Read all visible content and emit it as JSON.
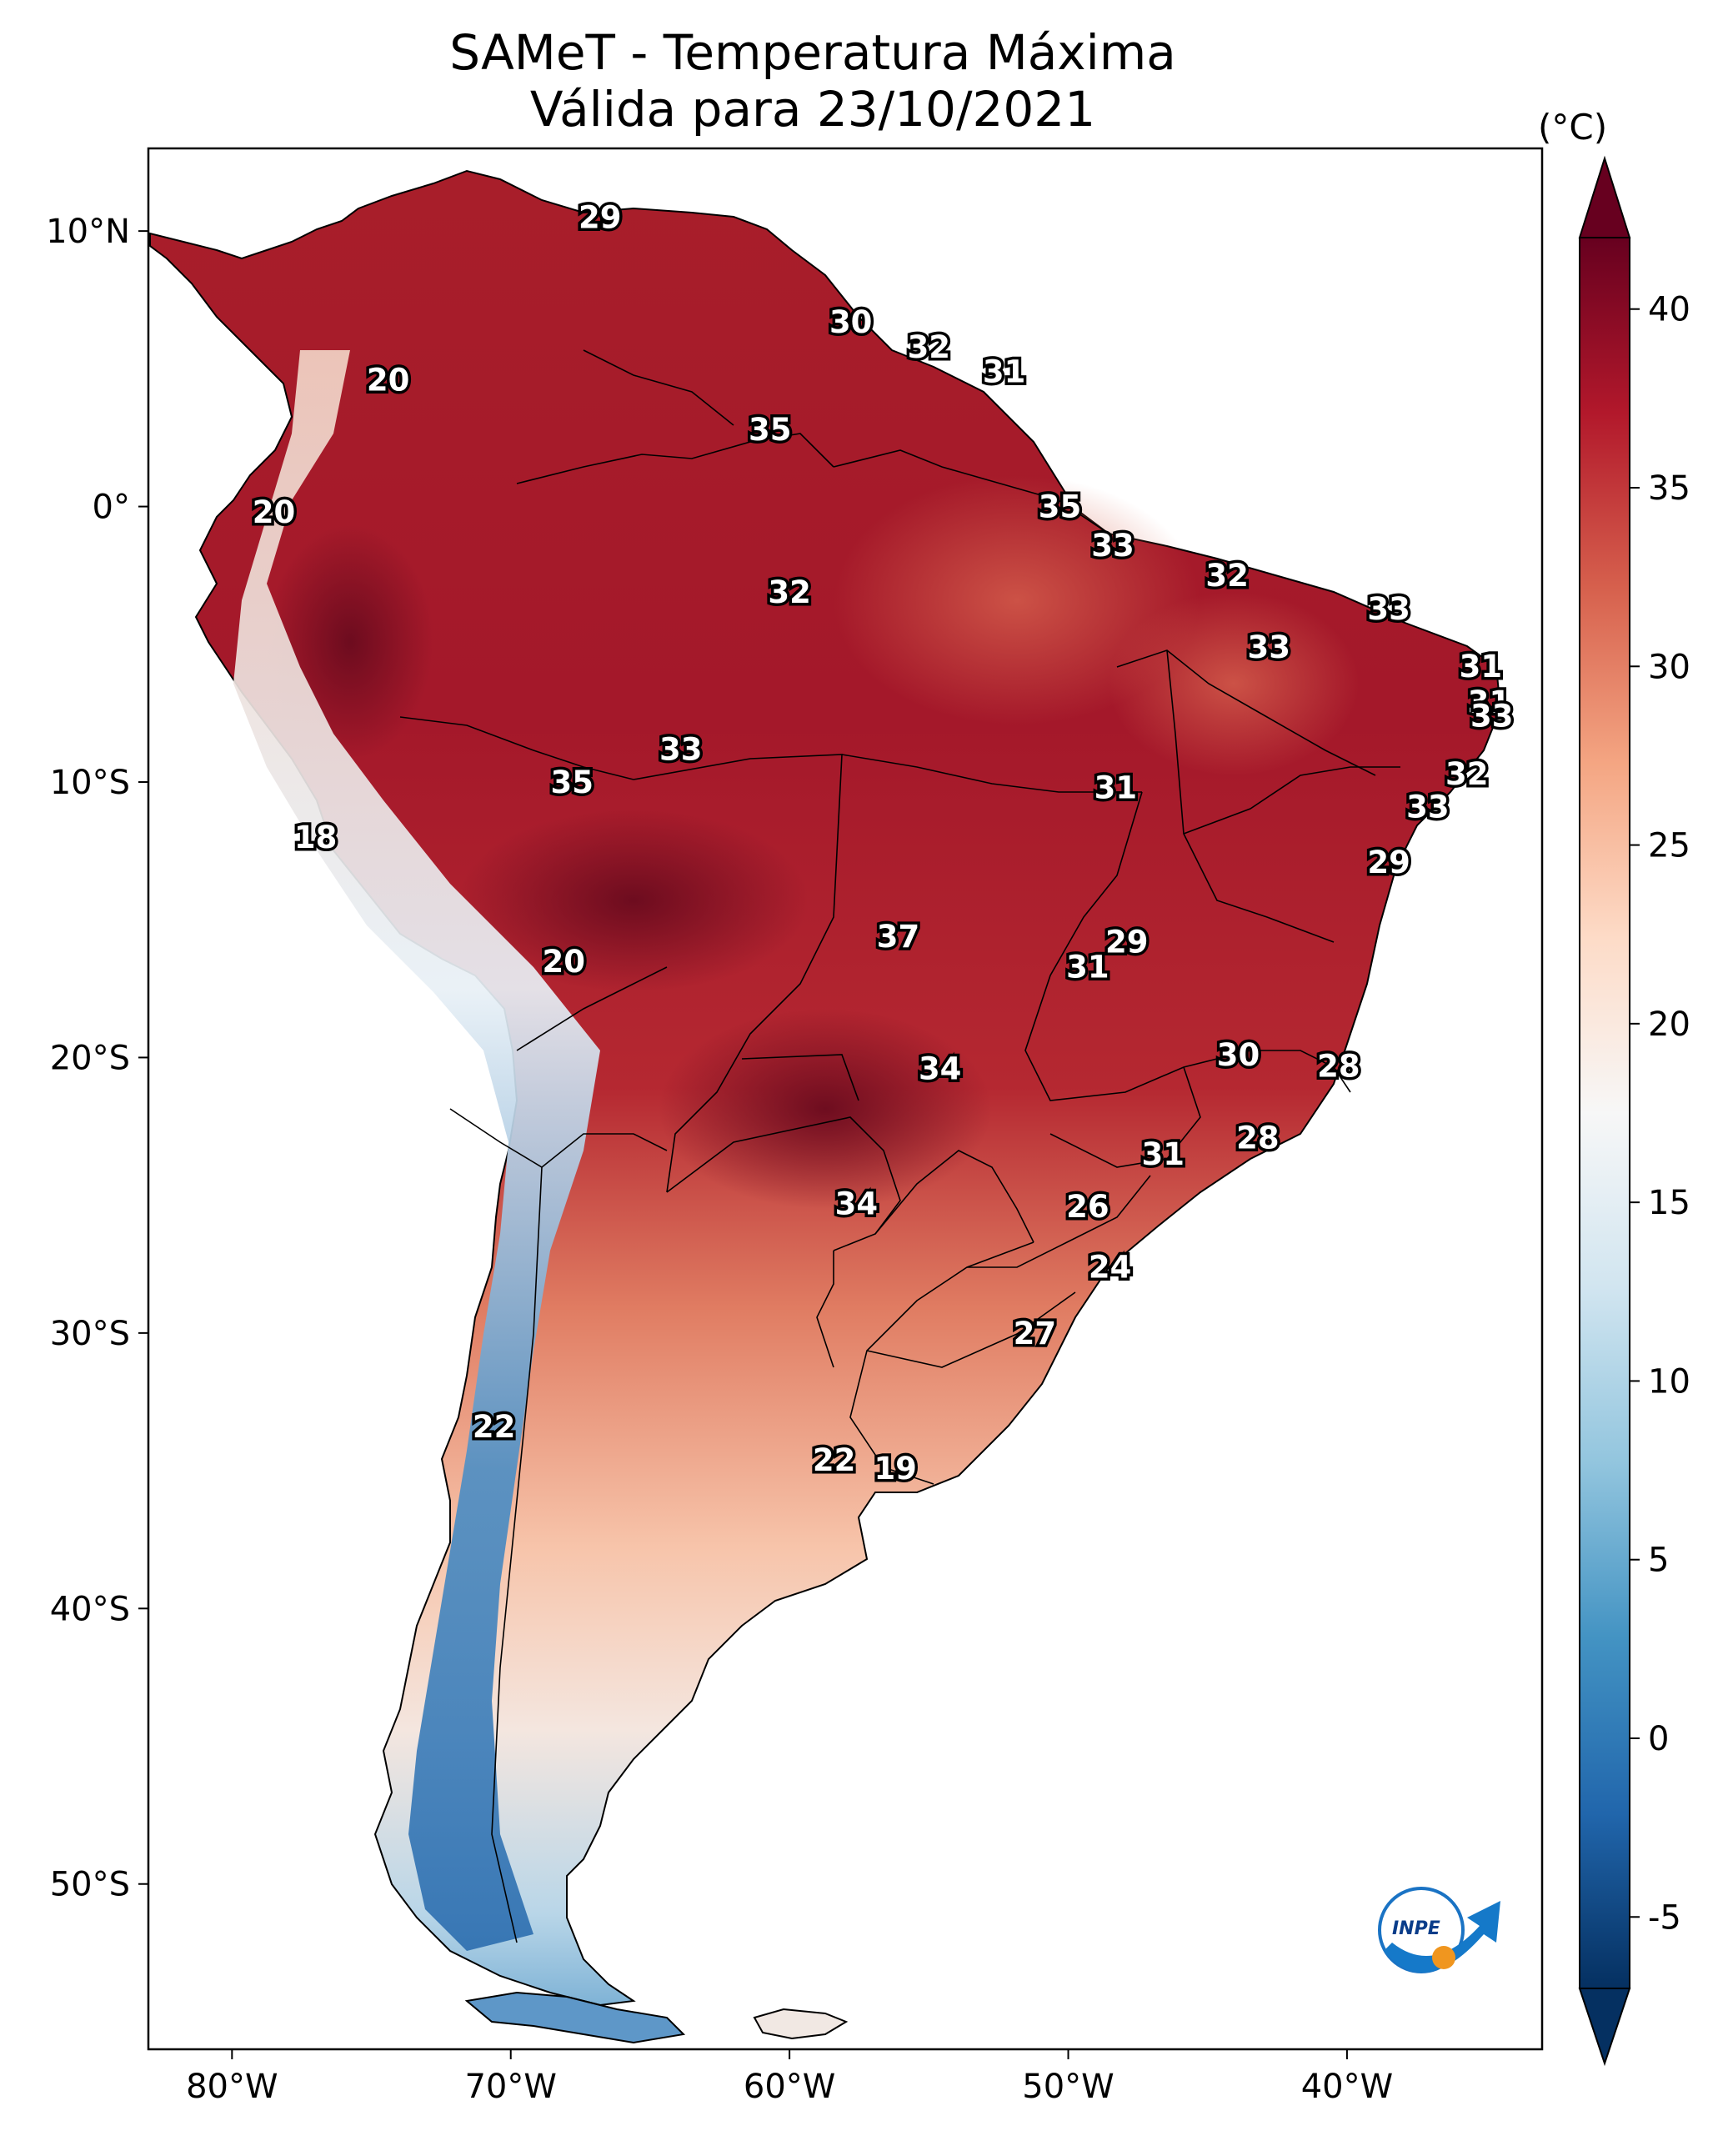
{
  "title": {
    "line1": "SAMeT - Temperatura Máxima",
    "line2": "Válida para 23/10/2021"
  },
  "colorbar": {
    "unit": "(°C)",
    "min": -7,
    "max": 42,
    "ticks": [
      "40",
      "35",
      "30",
      "25",
      "20",
      "15",
      "10",
      "5",
      "0",
      "-5"
    ],
    "tick_values": [
      40,
      35,
      30,
      25,
      20,
      15,
      10,
      5,
      0,
      -5
    ],
    "colormap": "RdBu_r",
    "colors": [
      "#053061",
      "#2166ac",
      "#4393c3",
      "#92c5de",
      "#d1e5f0",
      "#f7f7f7",
      "#fddbc7",
      "#f4a582",
      "#d6604d",
      "#b2182b",
      "#67001f"
    ]
  },
  "axes": {
    "lon_ticks": [
      "80°W",
      "70°W",
      "60°W",
      "50°W",
      "40°W"
    ],
    "lon_values": [
      -80,
      -70,
      -60,
      -50,
      -40
    ],
    "lat_ticks": [
      "10°N",
      "0°",
      "10°S",
      "20°S",
      "30°S",
      "40°S",
      "50°S"
    ],
    "lat_values": [
      10,
      0,
      -10,
      -20,
      -30,
      -40,
      -50
    ],
    "lon_range": [
      -83,
      -33
    ],
    "lat_range": [
      -56,
      13
    ]
  },
  "stations": [
    {
      "label": "29",
      "lon": -66.8,
      "lat": 10.5
    },
    {
      "label": "30",
      "lon": -57.8,
      "lat": 6.7
    },
    {
      "label": "32",
      "lon": -55.0,
      "lat": 5.8
    },
    {
      "label": "31",
      "lon": -52.3,
      "lat": 4.9
    },
    {
      "label": "20",
      "lon": -74.4,
      "lat": 4.6
    },
    {
      "label": "35",
      "lon": -60.7,
      "lat": 2.8
    },
    {
      "label": "20",
      "lon": -78.5,
      "lat": -0.2
    },
    {
      "label": "35",
      "lon": -50.3,
      "lat": 0.0
    },
    {
      "label": "33",
      "lon": -48.4,
      "lat": -1.4
    },
    {
      "label": "32",
      "lon": -44.3,
      "lat": -2.5
    },
    {
      "label": "33",
      "lon": -38.5,
      "lat": -3.7
    },
    {
      "label": "32",
      "lon": -60.0,
      "lat": -3.1
    },
    {
      "label": "33",
      "lon": -42.8,
      "lat": -5.1
    },
    {
      "label": "31",
      "lon": -35.2,
      "lat": -5.8
    },
    {
      "label": "31",
      "lon": -34.9,
      "lat": -7.1
    },
    {
      "label": "33",
      "lon": -34.8,
      "lat": -7.6
    },
    {
      "label": "33",
      "lon": -63.9,
      "lat": -8.8
    },
    {
      "label": "35",
      "lon": -67.8,
      "lat": -10.0
    },
    {
      "label": "31",
      "lon": -48.3,
      "lat": -10.2
    },
    {
      "label": "32",
      "lon": -35.7,
      "lat": -9.7
    },
    {
      "label": "33",
      "lon": -37.1,
      "lat": -10.9
    },
    {
      "label": "18",
      "lon": -77.0,
      "lat": -12.0
    },
    {
      "label": "29",
      "lon": -38.5,
      "lat": -12.9
    },
    {
      "label": "37",
      "lon": -56.1,
      "lat": -15.6
    },
    {
      "label": "29",
      "lon": -47.9,
      "lat": -15.8
    },
    {
      "label": "31",
      "lon": -49.3,
      "lat": -16.7
    },
    {
      "label": "20",
      "lon": -68.1,
      "lat": -16.5
    },
    {
      "label": "30",
      "lon": -43.9,
      "lat": -19.9
    },
    {
      "label": "28",
      "lon": -40.3,
      "lat": -20.3
    },
    {
      "label": "34",
      "lon": -54.6,
      "lat": -20.4
    },
    {
      "label": "28",
      "lon": -43.2,
      "lat": -22.9
    },
    {
      "label": "31",
      "lon": -46.6,
      "lat": -23.5
    },
    {
      "label": "34",
      "lon": -57.6,
      "lat": -25.3
    },
    {
      "label": "26",
      "lon": -49.3,
      "lat": -25.4
    },
    {
      "label": "24",
      "lon": -48.5,
      "lat": -27.6
    },
    {
      "label": "27",
      "lon": -51.2,
      "lat": -30.0
    },
    {
      "label": "22",
      "lon": -70.6,
      "lat": -33.4
    },
    {
      "label": "22",
      "lon": -58.4,
      "lat": -34.6
    },
    {
      "label": "19",
      "lon": -56.2,
      "lat": -34.9
    }
  ],
  "logo": {
    "text": "INPE"
  }
}
